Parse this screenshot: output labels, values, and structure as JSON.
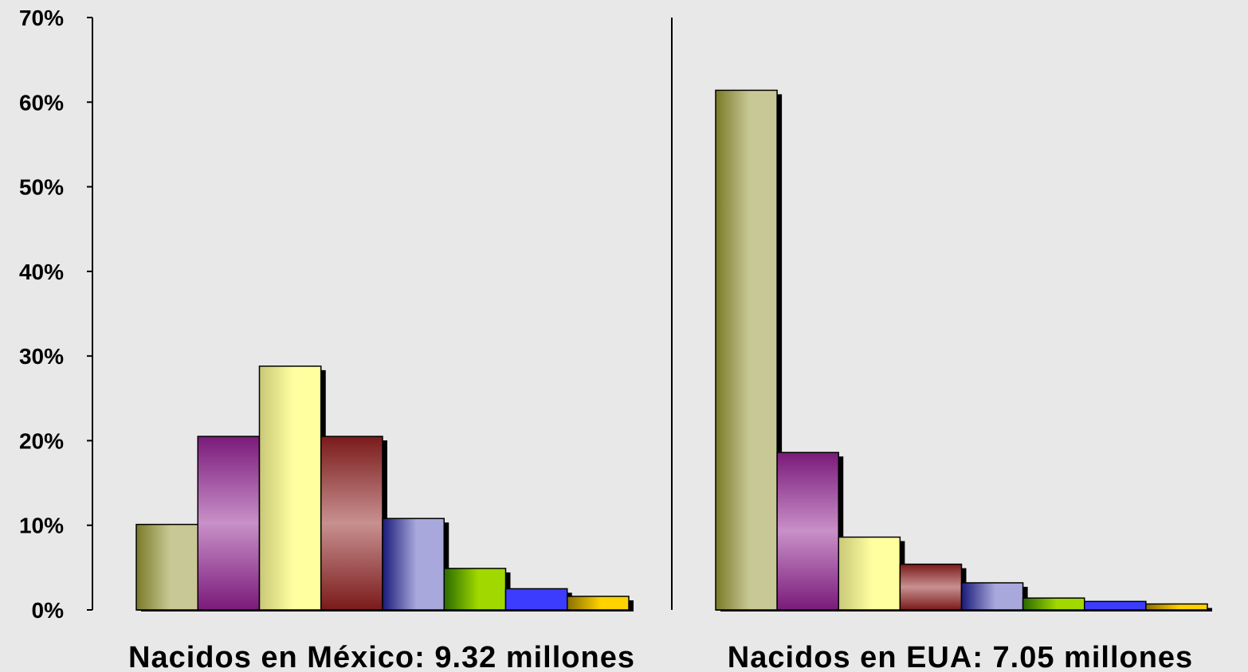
{
  "chart_data": {
    "type": "bar",
    "ylim": [
      0,
      70
    ],
    "y_ticks": [
      "0%",
      "10%",
      "20%",
      "30%",
      "40%",
      "50%",
      "60%",
      "70%"
    ],
    "y_tick_values": [
      0,
      10,
      20,
      30,
      40,
      50,
      60,
      70
    ],
    "grid": false,
    "legend": "none",
    "groups": [
      {
        "label": "Nacidos en México: 9.32 millones",
        "values": [
          10.1,
          20.5,
          28.8,
          20.5,
          10.8,
          4.9,
          2.5,
          1.6
        ]
      },
      {
        "label": "Nacidos en EUA: 7.05 millones",
        "values": [
          61.4,
          18.6,
          8.6,
          5.4,
          3.2,
          1.4,
          1.0,
          0.7
        ]
      }
    ],
    "bar_colors": [
      {
        "dark": "#7a7a28",
        "light": "#c8c896"
      },
      {
        "dark": "#7a1a7a",
        "light": "#c890c8"
      },
      {
        "dark": "#c8c878",
        "light": "#ffffa0"
      },
      {
        "dark": "#7a1a1a",
        "light": "#c89090"
      },
      {
        "dark": "#1a1a7a",
        "light": "#a8a8dc"
      },
      {
        "dark": "#2a6a00",
        "light": "#a0d800"
      },
      {
        "dark": "#1a1ab8",
        "light": "#3c3cff"
      },
      {
        "dark": "#8a7000",
        "light": "#ffd200"
      }
    ]
  }
}
